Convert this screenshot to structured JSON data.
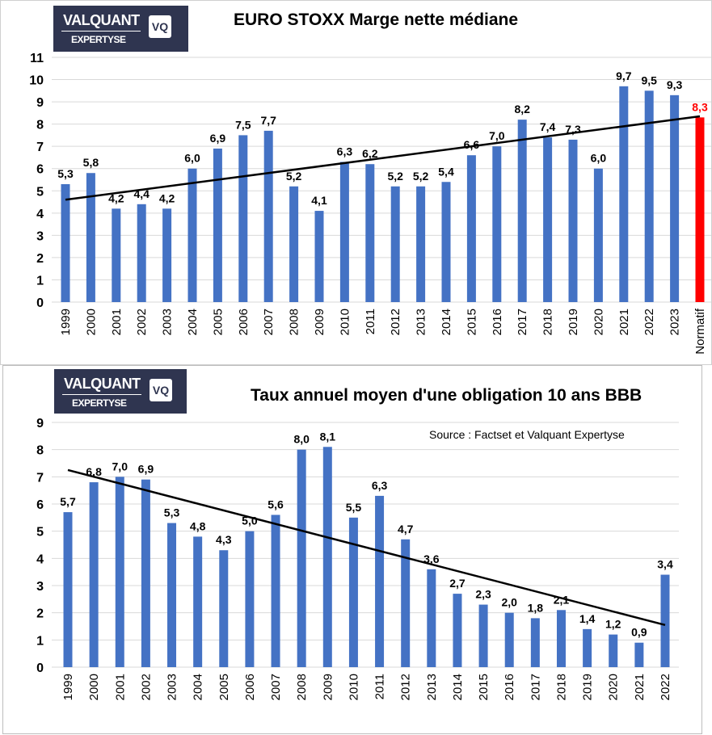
{
  "logo": {
    "line1": "VALQUANT",
    "line2": "EXPERTYSE",
    "mark": "VQ"
  },
  "colors": {
    "bar": "#4472c4",
    "highlight": "#ff0000",
    "trend": "#000000",
    "grid": "#d9d9d9"
  },
  "chart_data": [
    {
      "type": "bar",
      "title": "EURO STOXX Marge nette médiane",
      "categories": [
        "1999",
        "2000",
        "2001",
        "2002",
        "2003",
        "2004",
        "2005",
        "2006",
        "2007",
        "2008",
        "2009",
        "2010",
        "2011",
        "2012",
        "2013",
        "2014",
        "2015",
        "2016",
        "2017",
        "2018",
        "2019",
        "2020",
        "2021",
        "2022",
        "2023",
        "Normatif"
      ],
      "values": [
        5.3,
        5.8,
        4.2,
        4.4,
        4.2,
        6.0,
        6.9,
        7.5,
        7.7,
        5.2,
        4.1,
        6.3,
        6.2,
        5.2,
        5.2,
        5.4,
        6.6,
        7.0,
        8.2,
        7.4,
        7.3,
        6.0,
        9.7,
        9.5,
        9.3,
        8.3
      ],
      "labels": [
        "5,3",
        "5,8",
        "4,2",
        "4,4",
        "4,2",
        "6,0",
        "6,9",
        "7,5",
        "7,7",
        "5,2",
        "4,1",
        "6,3",
        "6,2",
        "5,2",
        "5,2",
        "5,4",
        "6,6",
        "7,0",
        "8,2",
        "7,4",
        "7,3",
        "6,0",
        "9,7",
        "9,5",
        "9,3",
        "8,3"
      ],
      "highlight_index": 25,
      "trendline": {
        "start": 4.6,
        "end": 8.35
      },
      "yticks": [
        "0",
        "1",
        "2",
        "3",
        "4",
        "5",
        "6",
        "7",
        "8",
        "9",
        "10",
        "11"
      ],
      "ylim": [
        0,
        11
      ],
      "grid": true
    },
    {
      "type": "bar",
      "title": "Taux annuel moyen d'une obligation 10 ans BBB",
      "subtitle": "Source : Factset et Valquant Expertyse",
      "categories": [
        "1999",
        "2000",
        "2001",
        "2002",
        "2003",
        "2004",
        "2005",
        "2006",
        "2007",
        "2008",
        "2009",
        "2010",
        "2011",
        "2012",
        "2013",
        "2014",
        "2015",
        "2016",
        "2017",
        "2018",
        "2019",
        "2020",
        "2021",
        "2022"
      ],
      "values": [
        5.7,
        6.8,
        7.0,
        6.9,
        5.3,
        4.8,
        4.3,
        5.0,
        5.6,
        8.0,
        8.1,
        5.5,
        6.3,
        4.7,
        3.6,
        2.7,
        2.3,
        2.0,
        1.8,
        2.1,
        1.4,
        1.2,
        0.9,
        3.4
      ],
      "labels": [
        "5,7",
        "6,8",
        "7,0",
        "6,9",
        "5,3",
        "4,8",
        "4,3",
        "5,0",
        "5,6",
        "8,0",
        "8,1",
        "5,5",
        "6,3",
        "4,7",
        "3,6",
        "2,7",
        "2,3",
        "2,0",
        "1,8",
        "2,1",
        "1,4",
        "1,2",
        "0,9",
        "3,4"
      ],
      "highlight_index": -1,
      "trendline": {
        "start": 7.25,
        "end": 1.55
      },
      "yticks": [
        "0",
        "1",
        "2",
        "3",
        "4",
        "5",
        "6",
        "7",
        "8",
        "9"
      ],
      "ylim": [
        0,
        9
      ],
      "grid": true
    }
  ]
}
